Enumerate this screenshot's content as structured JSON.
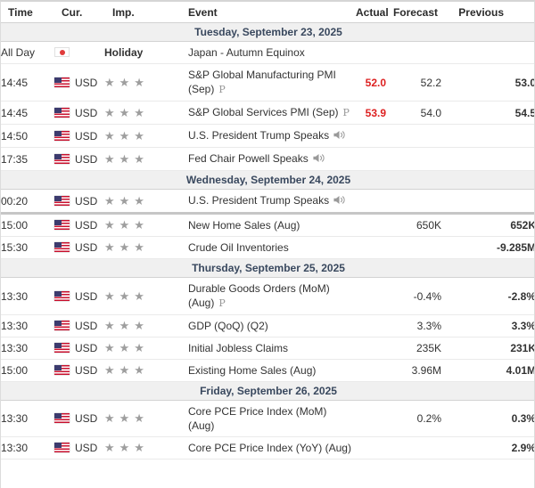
{
  "table": {
    "columns": [
      "Time",
      "Cur.",
      "Imp.",
      "Event",
      "Actual",
      "Forecast",
      "Previous"
    ],
    "importance_stars": "★★★",
    "preliminary_symbol": "P",
    "colors": {
      "actual_red": "#dd2121",
      "date_header_bg": "#f0f0f0",
      "star_gray": "#9e9e9e",
      "date_header_text": "#39485e"
    },
    "sections": [
      {
        "date": "Tuesday, September 23, 2025",
        "rows": [
          {
            "time": "All Day",
            "flag": "jp",
            "currency": "",
            "holiday": "Holiday",
            "event": "Japan - Autumn Equinox",
            "actual": "",
            "forecast": "",
            "previous": ""
          },
          {
            "time": "14:45",
            "flag": "us",
            "currency": "USD",
            "importance": 3,
            "event": "S&P Global Manufacturing PMI (Sep)",
            "preliminary": true,
            "actual": "52.0",
            "actual_red": true,
            "forecast": "52.2",
            "previous": "53.0"
          },
          {
            "time": "14:45",
            "flag": "us",
            "currency": "USD",
            "importance": 3,
            "event": "S&P Global Services PMI (Sep)",
            "preliminary": true,
            "actual": "53.9",
            "actual_red": true,
            "forecast": "54.0",
            "previous": "54.5"
          },
          {
            "time": "14:50",
            "flag": "us",
            "currency": "USD",
            "importance": 3,
            "event": "U.S. President Trump Speaks",
            "speech": true,
            "actual": "",
            "forecast": "",
            "previous": ""
          },
          {
            "time": "17:35",
            "flag": "us",
            "currency": "USD",
            "importance": 3,
            "event": "Fed Chair Powell Speaks",
            "speech": true,
            "actual": "",
            "forecast": "",
            "previous": ""
          }
        ]
      },
      {
        "date": "Wednesday, September 24, 2025",
        "rows": [
          {
            "time": "00:20",
            "flag": "us",
            "currency": "USD",
            "importance": 3,
            "event": "U.S. President Trump Speaks",
            "speech": true,
            "actual": "",
            "forecast": "",
            "previous": "",
            "divider_after": true
          },
          {
            "time": "15:00",
            "flag": "us",
            "currency": "USD",
            "importance": 3,
            "event": "New Home Sales (Aug)",
            "actual": "",
            "forecast": "650K",
            "previous": "652K"
          },
          {
            "time": "15:30",
            "flag": "us",
            "currency": "USD",
            "importance": 3,
            "event": "Crude Oil Inventories",
            "actual": "",
            "forecast": "",
            "previous": "-9.285M"
          }
        ]
      },
      {
        "date": "Thursday, September 25, 2025",
        "rows": [
          {
            "time": "13:30",
            "flag": "us",
            "currency": "USD",
            "importance": 3,
            "event": "Durable Goods Orders (MoM) (Aug)",
            "preliminary": true,
            "actual": "",
            "forecast": "-0.4%",
            "previous": "-2.8%"
          },
          {
            "time": "13:30",
            "flag": "us",
            "currency": "USD",
            "importance": 3,
            "event": "GDP (QoQ) (Q2)",
            "actual": "",
            "forecast": "3.3%",
            "previous": "3.3%"
          },
          {
            "time": "13:30",
            "flag": "us",
            "currency": "USD",
            "importance": 3,
            "event": "Initial Jobless Claims",
            "actual": "",
            "forecast": "235K",
            "previous": "231K"
          },
          {
            "time": "15:00",
            "flag": "us",
            "currency": "USD",
            "importance": 3,
            "event": "Existing Home Sales (Aug)",
            "actual": "",
            "forecast": "3.96M",
            "previous": "4.01M"
          }
        ]
      },
      {
        "date": "Friday, September 26, 2025",
        "rows": [
          {
            "time": "13:30",
            "flag": "us",
            "currency": "USD",
            "importance": 3,
            "event": "Core PCE Price Index (MoM) (Aug)",
            "actual": "",
            "forecast": "0.2%",
            "previous": "0.3%"
          },
          {
            "time": "13:30",
            "flag": "us",
            "currency": "USD",
            "importance": 3,
            "event": "Core PCE Price Index (YoY) (Aug)",
            "actual": "",
            "forecast": "",
            "previous": "2.9%"
          }
        ]
      }
    ]
  }
}
